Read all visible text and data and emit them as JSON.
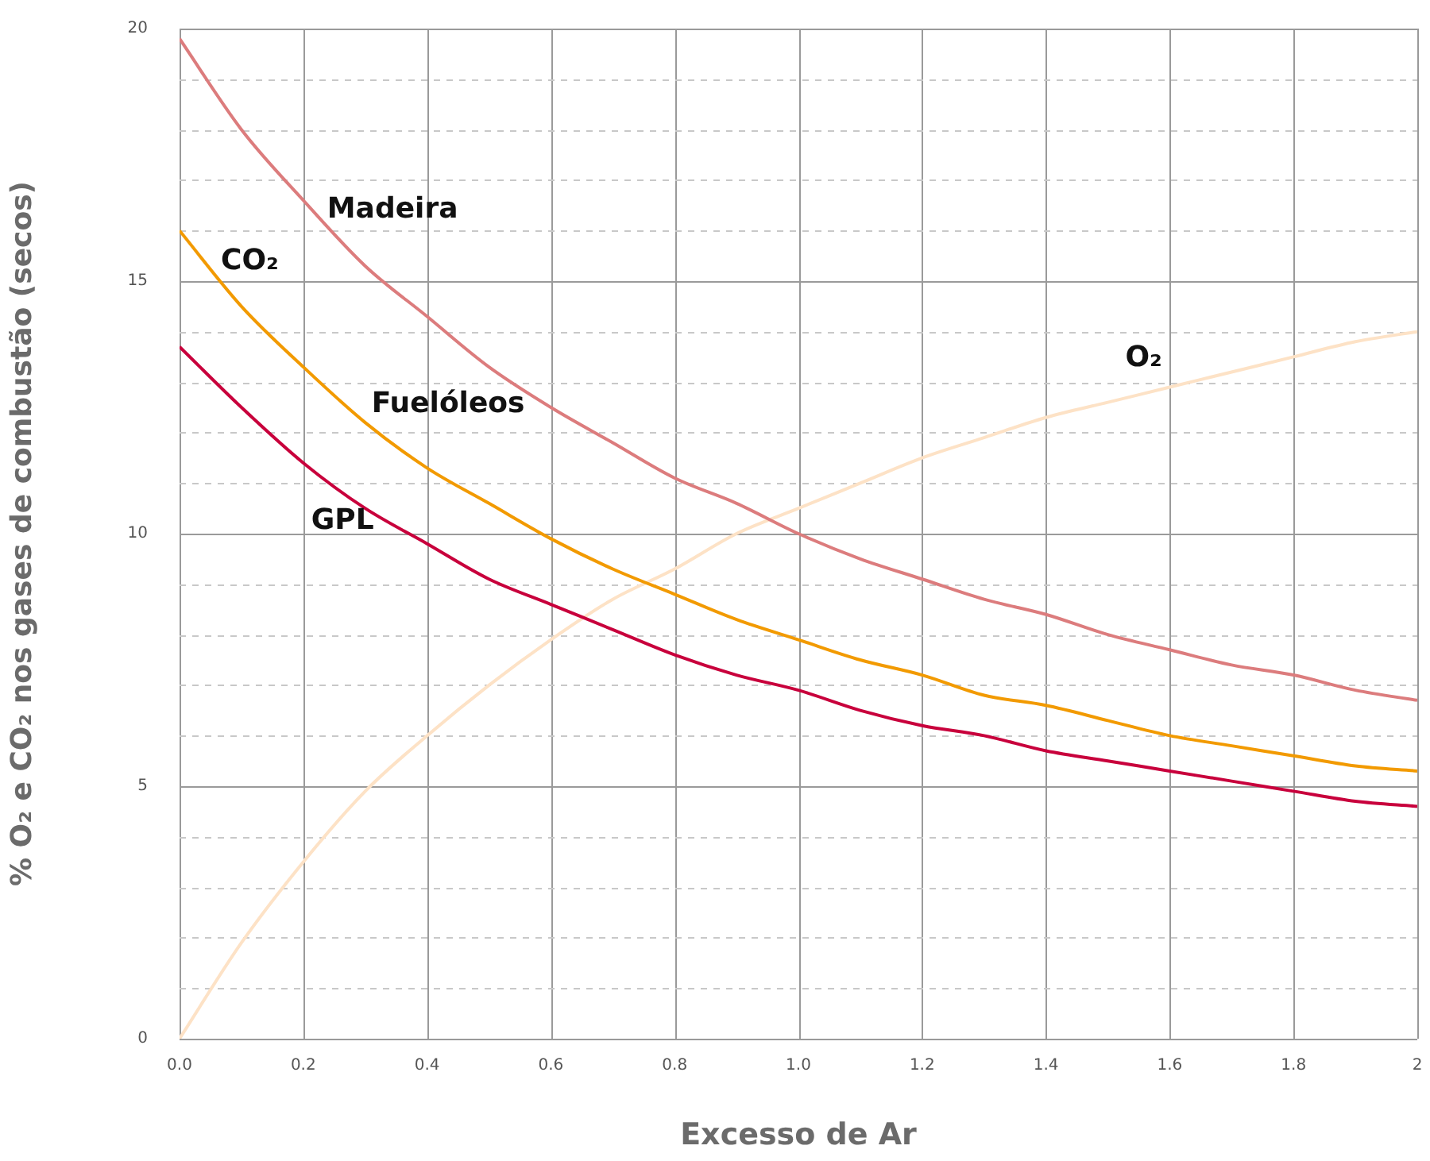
{
  "chart_data": {
    "type": "line",
    "xlabel": "Excesso de Ar",
    "ylabel": "% O₂ e CO₂ nos gases de combustão (secos)",
    "x": [
      0,
      0.1,
      0.2,
      0.3,
      0.4,
      0.5,
      0.6,
      0.7,
      0.8,
      0.9,
      1.0,
      1.1,
      1.2,
      1.3,
      1.4,
      1.5,
      1.6,
      1.7,
      1.8,
      1.9,
      2.0
    ],
    "series": [
      {
        "name": "Madeira",
        "color": "#dc7c7d",
        "values": [
          19.8,
          18.0,
          16.6,
          15.3,
          14.3,
          13.3,
          12.5,
          11.8,
          11.1,
          10.6,
          10.0,
          9.5,
          9.1,
          8.7,
          8.4,
          8.0,
          7.7,
          7.4,
          7.2,
          6.9,
          6.7
        ]
      },
      {
        "name": "Fuelóleos",
        "color": "#f29a00",
        "values": [
          16.0,
          14.5,
          13.3,
          12.2,
          11.3,
          10.6,
          9.9,
          9.3,
          8.8,
          8.3,
          7.9,
          7.5,
          7.2,
          6.8,
          6.6,
          6.3,
          6.0,
          5.8,
          5.6,
          5.4,
          5.3
        ]
      },
      {
        "name": "GPL",
        "color": "#c8003c",
        "values": [
          13.7,
          12.5,
          11.4,
          10.5,
          9.8,
          9.1,
          8.6,
          8.1,
          7.6,
          7.2,
          6.9,
          6.5,
          6.2,
          6.0,
          5.7,
          5.5,
          5.3,
          5.1,
          4.9,
          4.7,
          4.6
        ]
      },
      {
        "name": "O₂",
        "color": "#fde2c6",
        "values": [
          0,
          1.9,
          3.5,
          4.9,
          6.0,
          7.0,
          7.9,
          8.7,
          9.3,
          10.0,
          10.5,
          11.0,
          11.5,
          11.9,
          12.3,
          12.6,
          12.9,
          13.2,
          13.5,
          13.8,
          14.0
        ]
      }
    ],
    "annotations": [
      "CO₂"
    ],
    "xlim": [
      0,
      2
    ],
    "xticks": [
      {
        "value": 0,
        "label": "0.0"
      },
      {
        "value": 0.2,
        "label": "0.2"
      },
      {
        "value": 0.4,
        "label": "0.4"
      },
      {
        "value": 0.6,
        "label": "0.6"
      },
      {
        "value": 0.8,
        "label": "0.8"
      },
      {
        "value": 1,
        "label": "1.0"
      },
      {
        "value": 1.2,
        "label": "1.2"
      },
      {
        "value": 1.4,
        "label": "1.4"
      },
      {
        "value": 1.6,
        "label": "1.6"
      },
      {
        "value": 1.8,
        "label": "1.8"
      },
      {
        "value": 2,
        "label": "2"
      }
    ],
    "ylim": [
      0,
      20
    ],
    "yticks": [
      0,
      {
        "value": 1,
        "label": null
      },
      {
        "value": 2,
        "label": null
      },
      {
        "value": 3,
        "label": null
      },
      {
        "value": 4,
        "label": null
      },
      5,
      {
        "value": 6,
        "label": null
      },
      {
        "value": 7,
        "label": null
      },
      {
        "value": 8,
        "label": null
      },
      {
        "value": 9,
        "label": null
      },
      10,
      {
        "value": 11,
        "label": null
      },
      {
        "value": 12,
        "label": null
      },
      {
        "value": 13,
        "label": null
      },
      {
        "value": 14,
        "label": null
      },
      15,
      {
        "value": 16,
        "label": null
      },
      {
        "value": 17,
        "label": null
      },
      {
        "value": 18,
        "label": null
      },
      {
        "value": 19,
        "label": null
      },
      20
    ],
    "grid": true,
    "legend": false,
    "marker": "none",
    "line_style": "solid"
  }
}
